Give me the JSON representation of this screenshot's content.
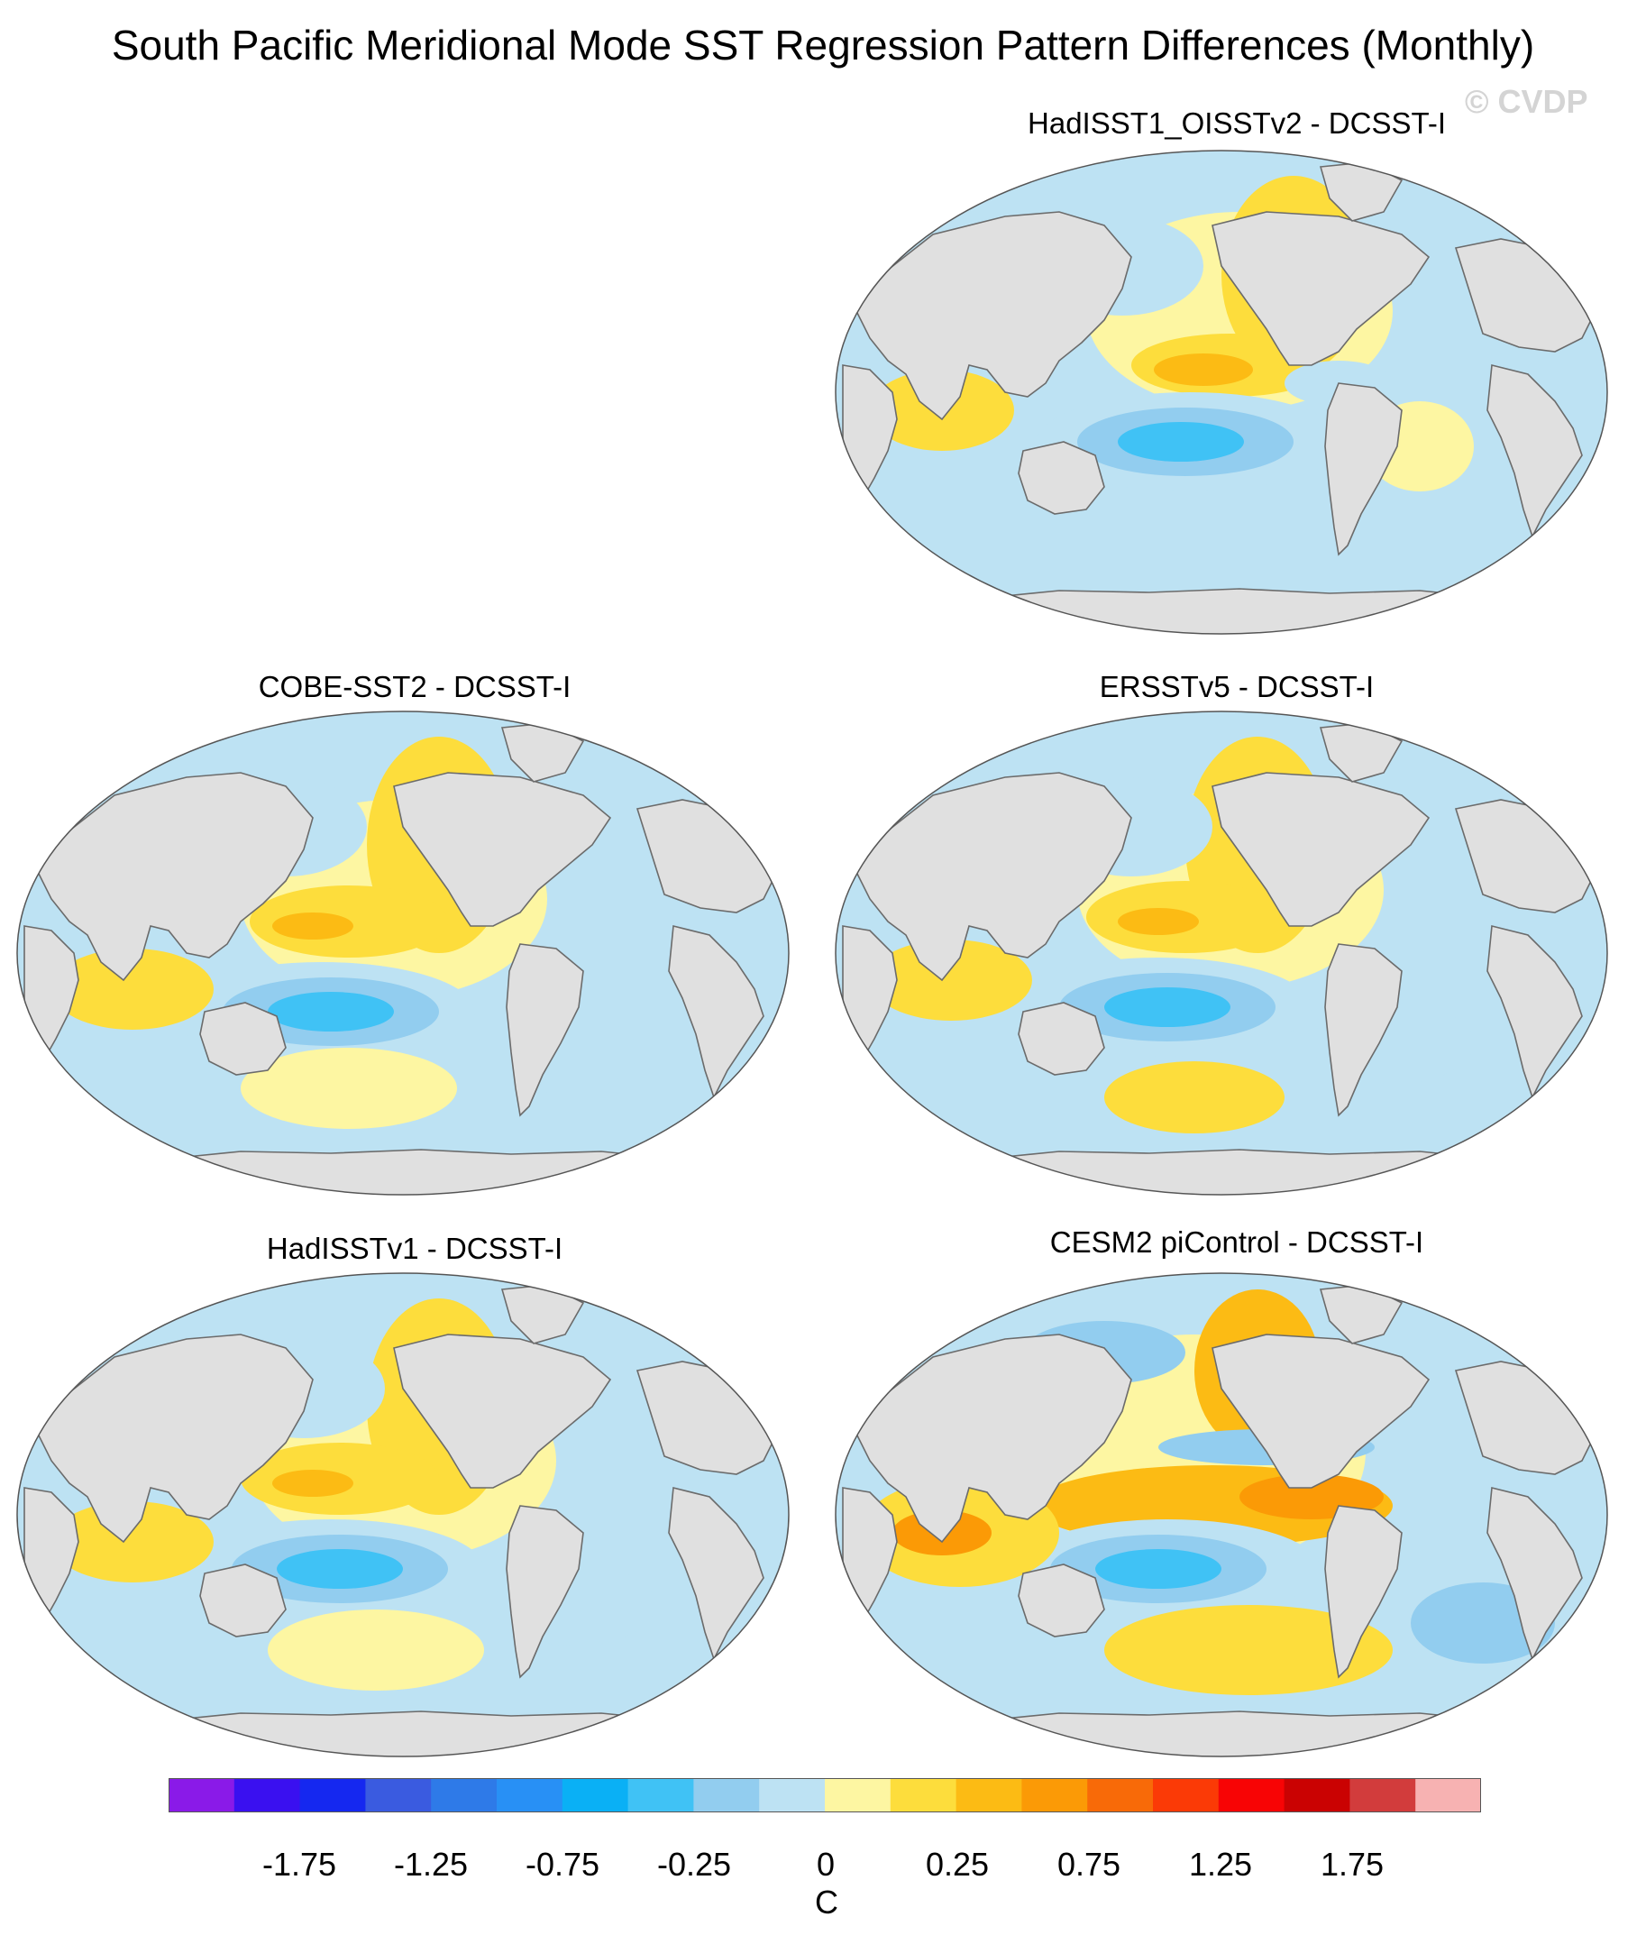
{
  "figure": {
    "title": "South Pacific Meridional Mode SST Regression Pattern Differences (Monthly)",
    "watermark": "© CVDP"
  },
  "panels": [
    {
      "id": "hadisst1-oisstv2",
      "title": "HadISST1_OISSTv2 - DCSST-I"
    },
    {
      "id": "cobe-sst2",
      "title": "COBE-SST2 - DCSST-I"
    },
    {
      "id": "ersstv5",
      "title": "ERSSTv5 - DCSST-I"
    },
    {
      "id": "hadisstv1",
      "title": "HadISSTv1 - DCSST-I"
    },
    {
      "id": "cesm2-picontrol",
      "title": "CESM2 piControl - DCSST-I"
    }
  ],
  "colors": {
    "land": "#e0e0e0",
    "coastline": "#6b6b6b",
    "missing": "#d0d0d0"
  },
  "colorbar": {
    "unit": "C",
    "tick_labels": [
      "-1.75",
      "-1.25",
      "-0.75",
      "-0.25",
      "0",
      "0.25",
      "0.75",
      "1.25",
      "1.75"
    ],
    "colors": [
      "#8a1ae8",
      "#3a10f0",
      "#1528f0",
      "#3a5be0",
      "#2e7ae8",
      "#2890f5",
      "#0ab0f5",
      "#40c2f5",
      "#92cdef",
      "#bde2f3",
      "#fdf6a2",
      "#fddd3c",
      "#fcbb14",
      "#fb9a06",
      "#f86a08",
      "#fb3a06",
      "#f80405",
      "#ca0202",
      "#d23c3c",
      "#f7b2b2"
    ]
  }
}
